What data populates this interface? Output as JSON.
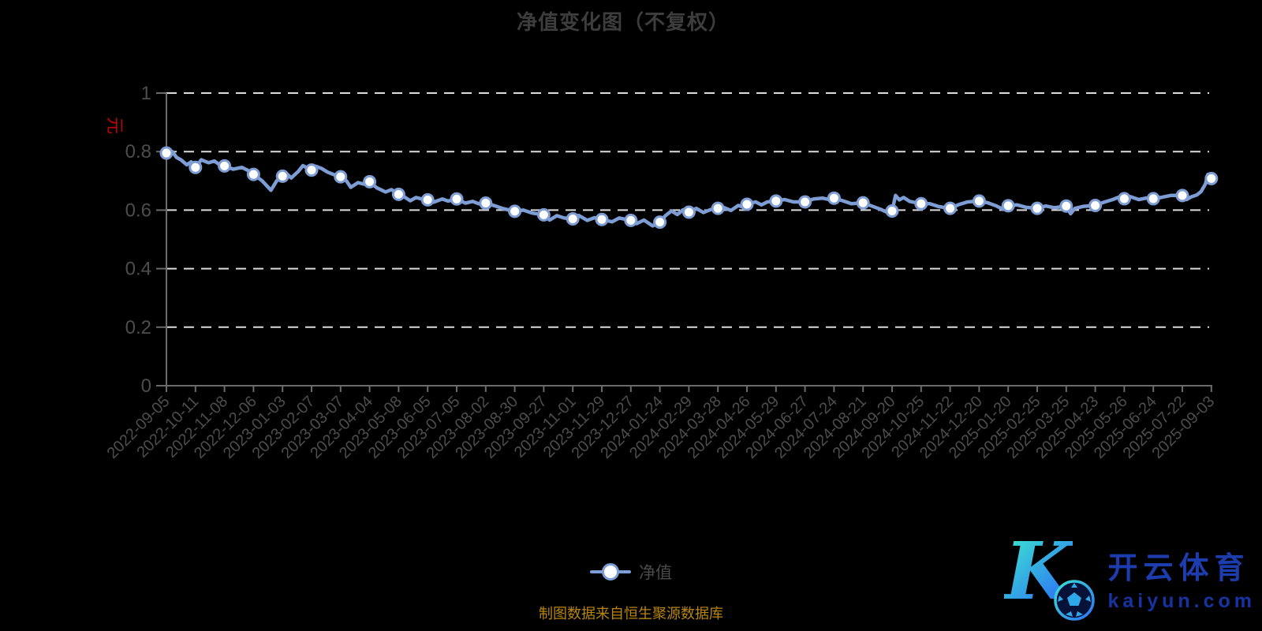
{
  "title": {
    "text": "净值变化图（不复权）"
  },
  "legend": {
    "items": [
      {
        "label": "净值",
        "marker": "line-with-circle-icon"
      }
    ]
  },
  "source_note": {
    "text": "制图数据来自恒生聚源数据库"
  },
  "logo": {
    "k_glyph": "K",
    "brand_cn": "开云体育",
    "domain": "kaiyun.com"
  },
  "colors": {
    "background": "#000000",
    "line": "#7d9dd4",
    "marker_fill": "#ffffff",
    "grid": "#dcdcdc",
    "axis": "#6b6b6b",
    "axis_label": "#4d4d4d",
    "title": "#3d3d3d",
    "y_axis_name": "#c40000",
    "source": "#b8860b",
    "legend_label": "#4a4a4a"
  },
  "chart_data": {
    "type": "line",
    "title": "净值变化图（不复权）",
    "y_axis_name": "元",
    "ylim": [
      0,
      1
    ],
    "y_ticks": [
      {
        "v": 1,
        "label": "1"
      },
      {
        "v": 0.8,
        "label": "0.8"
      },
      {
        "v": 0.6,
        "label": "0.6"
      },
      {
        "v": 0.4,
        "label": "0.4"
      },
      {
        "v": 0.2,
        "label": "0.2"
      },
      {
        "v": 0,
        "label": "0"
      }
    ],
    "grid": "horizontal-dashed",
    "legend_position": "bottom-center",
    "categories": [
      "2022-09-05",
      "2022-10-11",
      "2022-11-08",
      "2022-12-06",
      "2023-01-03",
      "2023-02-07",
      "2023-03-07",
      "2023-04-04",
      "2023-05-08",
      "2023-06-05",
      "2023-07-05",
      "2023-08-02",
      "2023-08-30",
      "2023-09-27",
      "2023-11-01",
      "2023-11-29",
      "2023-12-27",
      "2024-01-24",
      "2024-02-29",
      "2024-03-28",
      "2024-04-26",
      "2024-05-29",
      "2024-06-27",
      "2024-07-24",
      "2024-08-21",
      "2024-09-20",
      "2024-10-25",
      "2024-11-22",
      "2024-12-20",
      "2025-01-20",
      "2025-02-25",
      "2025-03-25",
      "2025-04-23",
      "2025-05-26",
      "2025-06-24",
      "2025-07-22",
      "2025-09-03"
    ],
    "series": [
      {
        "name": "净值",
        "values": [
          0.795,
          0.746,
          0.751,
          0.722,
          0.716,
          0.737,
          0.714,
          0.697,
          0.654,
          0.635,
          0.638,
          0.624,
          0.596,
          0.584,
          0.57,
          0.568,
          0.565,
          0.559,
          0.593,
          0.606,
          0.62,
          0.631,
          0.628,
          0.641,
          0.625,
          0.597,
          0.622,
          0.606,
          0.631,
          0.615,
          0.606,
          0.614,
          0.616,
          0.639,
          0.639,
          0.65,
          0.708
        ]
      }
    ],
    "dense_path": [
      [
        0,
        0.795
      ],
      [
        0.2,
        0.8
      ],
      [
        0.35,
        0.78
      ],
      [
        0.5,
        0.772
      ],
      [
        0.7,
        0.755
      ],
      [
        0.85,
        0.765
      ],
      [
        1,
        0.746
      ],
      [
        1.2,
        0.772
      ],
      [
        1.45,
        0.762
      ],
      [
        1.65,
        0.768
      ],
      [
        1.85,
        0.754
      ],
      [
        2,
        0.751
      ],
      [
        2.3,
        0.74
      ],
      [
        2.6,
        0.746
      ],
      [
        2.8,
        0.736
      ],
      [
        3,
        0.722
      ],
      [
        3.3,
        0.7
      ],
      [
        3.6,
        0.668
      ],
      [
        3.8,
        0.7
      ],
      [
        4,
        0.716
      ],
      [
        4.15,
        0.724
      ],
      [
        4.3,
        0.71
      ],
      [
        4.55,
        0.733
      ],
      [
        4.7,
        0.752
      ],
      [
        4.85,
        0.744
      ],
      [
        5,
        0.737
      ],
      [
        5.15,
        0.75
      ],
      [
        5.35,
        0.742
      ],
      [
        5.55,
        0.73
      ],
      [
        5.75,
        0.722
      ],
      [
        6,
        0.714
      ],
      [
        6.2,
        0.7
      ],
      [
        6.35,
        0.678
      ],
      [
        6.6,
        0.694
      ],
      [
        6.8,
        0.689
      ],
      [
        7,
        0.697
      ],
      [
        7.25,
        0.676
      ],
      [
        7.55,
        0.662
      ],
      [
        7.75,
        0.67
      ],
      [
        8,
        0.654
      ],
      [
        8.2,
        0.645
      ],
      [
        8.4,
        0.632
      ],
      [
        8.6,
        0.643
      ],
      [
        8.8,
        0.638
      ],
      [
        9,
        0.635
      ],
      [
        9.2,
        0.627
      ],
      [
        9.5,
        0.638
      ],
      [
        9.7,
        0.631
      ],
      [
        10,
        0.638
      ],
      [
        10.3,
        0.624
      ],
      [
        10.55,
        0.63
      ],
      [
        10.75,
        0.622
      ],
      [
        11,
        0.624
      ],
      [
        11.3,
        0.615
      ],
      [
        11.6,
        0.605
      ],
      [
        12,
        0.596
      ],
      [
        12.3,
        0.6
      ],
      [
        12.6,
        0.59
      ],
      [
        13,
        0.584
      ],
      [
        13.2,
        0.566
      ],
      [
        13.45,
        0.581
      ],
      [
        13.7,
        0.573
      ],
      [
        14,
        0.57
      ],
      [
        14.2,
        0.582
      ],
      [
        14.5,
        0.565
      ],
      [
        14.75,
        0.574
      ],
      [
        15,
        0.568
      ],
      [
        15.35,
        0.56
      ],
      [
        15.6,
        0.573
      ],
      [
        16,
        0.565
      ],
      [
        16.2,
        0.554
      ],
      [
        16.45,
        0.566
      ],
      [
        16.75,
        0.546
      ],
      [
        17,
        0.559
      ],
      [
        17.2,
        0.582
      ],
      [
        17.4,
        0.597
      ],
      [
        17.6,
        0.585
      ],
      [
        17.8,
        0.601
      ],
      [
        18,
        0.593
      ],
      [
        18.25,
        0.606
      ],
      [
        18.5,
        0.592
      ],
      [
        18.75,
        0.602
      ],
      [
        19,
        0.606
      ],
      [
        19.2,
        0.609
      ],
      [
        19.45,
        0.599
      ],
      [
        19.7,
        0.616
      ],
      [
        19.85,
        0.611
      ],
      [
        20,
        0.62
      ],
      [
        20.3,
        0.628
      ],
      [
        20.5,
        0.618
      ],
      [
        20.7,
        0.628
      ],
      [
        21,
        0.631
      ],
      [
        21.3,
        0.636
      ],
      [
        21.6,
        0.628
      ],
      [
        22,
        0.628
      ],
      [
        22.3,
        0.638
      ],
      [
        22.6,
        0.641
      ],
      [
        22.8,
        0.637
      ],
      [
        23,
        0.641
      ],
      [
        23.3,
        0.632
      ],
      [
        23.6,
        0.622
      ],
      [
        24,
        0.625
      ],
      [
        24.3,
        0.614
      ],
      [
        24.6,
        0.603
      ],
      [
        24.85,
        0.592
      ],
      [
        25,
        0.597
      ],
      [
        25.12,
        0.65
      ],
      [
        25.25,
        0.635
      ],
      [
        25.4,
        0.643
      ],
      [
        25.6,
        0.63
      ],
      [
        25.8,
        0.626
      ],
      [
        26,
        0.622
      ],
      [
        26.3,
        0.622
      ],
      [
        26.6,
        0.612
      ],
      [
        27,
        0.606
      ],
      [
        27.3,
        0.619
      ],
      [
        27.6,
        0.628
      ],
      [
        28,
        0.631
      ],
      [
        28.3,
        0.625
      ],
      [
        28.6,
        0.614
      ],
      [
        28.8,
        0.604
      ],
      [
        29,
        0.615
      ],
      [
        29.3,
        0.618
      ],
      [
        29.6,
        0.61
      ],
      [
        30,
        0.606
      ],
      [
        30.3,
        0.614
      ],
      [
        30.6,
        0.608
      ],
      [
        31,
        0.614
      ],
      [
        31.15,
        0.588
      ],
      [
        31.3,
        0.606
      ],
      [
        31.6,
        0.613
      ],
      [
        32,
        0.616
      ],
      [
        32.3,
        0.627
      ],
      [
        32.6,
        0.636
      ],
      [
        32.8,
        0.644
      ],
      [
        33,
        0.639
      ],
      [
        33.2,
        0.646
      ],
      [
        33.5,
        0.636
      ],
      [
        33.75,
        0.641
      ],
      [
        34,
        0.639
      ],
      [
        34.3,
        0.644
      ],
      [
        34.6,
        0.65
      ],
      [
        35,
        0.65
      ],
      [
        35.15,
        0.636
      ],
      [
        35.3,
        0.645
      ],
      [
        35.5,
        0.652
      ],
      [
        35.65,
        0.664
      ],
      [
        35.8,
        0.69
      ],
      [
        35.88,
        0.722
      ],
      [
        35.93,
        0.701
      ],
      [
        36,
        0.708
      ]
    ]
  }
}
